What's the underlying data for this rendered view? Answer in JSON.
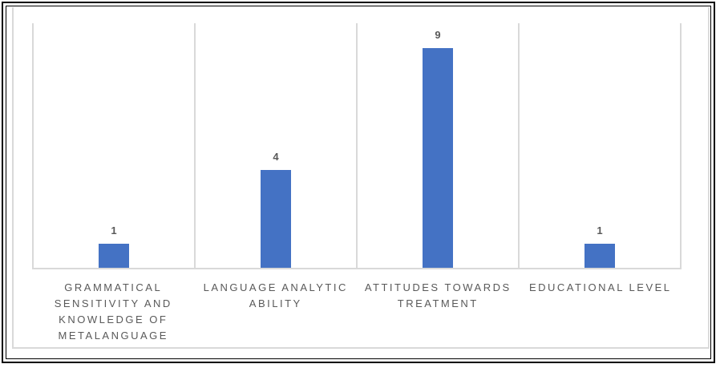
{
  "chart_data": {
    "type": "bar",
    "categories": [
      "GRAMMATICAL SENSITIVITY AND KNOWLEDGE OF METALANGUAGE",
      "LANGUAGE ANALYTIC ABILITY",
      "ATTITUDES TOWARDS TREATMENT",
      "EDUCATIONAL LEVEL"
    ],
    "values": [
      1,
      4,
      9,
      1
    ],
    "data_labels": [
      "1",
      "4",
      "9",
      "1"
    ],
    "title": "",
    "xlabel": "",
    "ylabel": "",
    "ylim": [
      0,
      10
    ],
    "grid": "vertical category separators + baseline, no horizontal gridlines",
    "legend": "none",
    "bar_color": "#4472C4",
    "gridline_color": "#D9D9D9",
    "text_color": "#595959",
    "frame_color": "#000000"
  }
}
